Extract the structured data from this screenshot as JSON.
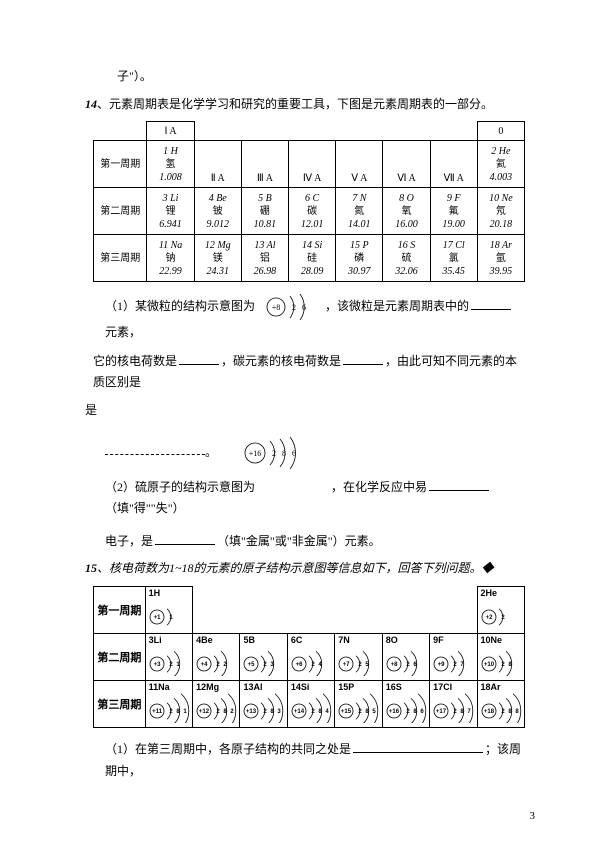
{
  "fragment_top": "子\"）。",
  "q14_num": "14",
  "q14_text": "、元素周期表是化学学习和研究的重要工具，下图是元素周期表的一部分。",
  "groups": [
    "Ⅰ A",
    "Ⅱ A",
    "Ⅲ A",
    "Ⅳ A",
    "Ⅴ A",
    "Ⅵ A",
    "Ⅶ A",
    "0"
  ],
  "periods_label": [
    "第一周期",
    "第二周期",
    "第三周期"
  ],
  "p1": [
    {
      "num": "1",
      "sym": "H",
      "name": "氢",
      "mass": "1.008"
    },
    null,
    null,
    null,
    null,
    null,
    null,
    {
      "num": "2",
      "sym": "He",
      "name": "氦",
      "mass": "4.003"
    }
  ],
  "p2": [
    {
      "num": "3",
      "sym": "Li",
      "name": "锂",
      "mass": "6.941"
    },
    {
      "num": "4",
      "sym": "Be",
      "name": "铍",
      "mass": "9.012"
    },
    {
      "num": "5",
      "sym": "B",
      "name": "硼",
      "mass": "10.81"
    },
    {
      "num": "6",
      "sym": "C",
      "name": "碳",
      "mass": "12.01"
    },
    {
      "num": "7",
      "sym": "N",
      "name": "氮",
      "mass": "14.01"
    },
    {
      "num": "8",
      "sym": "O",
      "name": "氧",
      "mass": "16.00"
    },
    {
      "num": "9",
      "sym": "F",
      "name": "氟",
      "mass": "19.00"
    },
    {
      "num": "10",
      "sym": "Ne",
      "name": "氖",
      "mass": "20.18"
    }
  ],
  "p3": [
    {
      "num": "11",
      "sym": "Na",
      "name": "钠",
      "mass": "22.99"
    },
    {
      "num": "12",
      "sym": "Mg",
      "name": "镁",
      "mass": "24.31"
    },
    {
      "num": "13",
      "sym": "Al",
      "name": "铝",
      "mass": "26.98"
    },
    {
      "num": "14",
      "sym": "Si",
      "name": "硅",
      "mass": "28.09"
    },
    {
      "num": "15",
      "sym": "P",
      "name": "磷",
      "mass": "30.97"
    },
    {
      "num": "16",
      "sym": "S",
      "name": "硫",
      "mass": "32.06"
    },
    {
      "num": "17",
      "sym": "Cl",
      "name": "氯",
      "mass": "35.45"
    },
    {
      "num": "18",
      "sym": "Ar",
      "name": "氩",
      "mass": "39.95"
    }
  ],
  "q14_1a": "（1）某微粒的结构示意图为",
  "q14_1b": "，该微粒是元素周期表中的",
  "q14_1c": "元素，",
  "q14_1d": "它的核电荷数是",
  "q14_1e": "，碳元素的核电荷数是",
  "q14_1f": "，由此可知不同元素的本质区别是",
  "q14_1g": "。",
  "q14_2a": "（2）硫原子的结构示意图为",
  "q14_2b": "，在化学反应中易",
  "q14_2c": "（填\"得\"\"失\"）",
  "q14_2d": "电子，是",
  "q14_2e": "（填\"金属\"或\"非金属\"）元素。",
  "q15_num": "15",
  "q15_text": "、核电荷数为1~18的元素的原子结构示意图等信息如下，回答下列问题。◆",
  "t2": {
    "periods": [
      "第一周期",
      "第二周期",
      "第三周期"
    ],
    "r1": [
      {
        "lbl": "1H",
        "n": "+1",
        "sh": [
          1
        ]
      },
      null,
      null,
      null,
      null,
      null,
      null,
      {
        "lbl": "2He",
        "n": "+2",
        "sh": [
          2
        ]
      }
    ],
    "r2": [
      {
        "lbl": "3Li",
        "n": "+3",
        "sh": [
          2,
          1
        ]
      },
      {
        "lbl": "4Be",
        "n": "+4",
        "sh": [
          2,
          2
        ]
      },
      {
        "lbl": "5B",
        "n": "+5",
        "sh": [
          2,
          3
        ]
      },
      {
        "lbl": "6C",
        "n": "+6",
        "sh": [
          2,
          4
        ]
      },
      {
        "lbl": "7N",
        "n": "+7",
        "sh": [
          2,
          5
        ]
      },
      {
        "lbl": "8O",
        "n": "+8",
        "sh": [
          2,
          6
        ]
      },
      {
        "lbl": "9F",
        "n": "+9",
        "sh": [
          2,
          7
        ]
      },
      {
        "lbl": "10Ne",
        "n": "+10",
        "sh": [
          2,
          8
        ]
      }
    ],
    "r3": [
      {
        "lbl": "11Na",
        "n": "+11",
        "sh": [
          2,
          8,
          1
        ]
      },
      {
        "lbl": "12Mg",
        "n": "+12",
        "sh": [
          2,
          8,
          2
        ]
      },
      {
        "lbl": "13Al",
        "n": "+13",
        "sh": [
          2,
          8,
          3
        ]
      },
      {
        "lbl": "14Si",
        "n": "+14",
        "sh": [
          2,
          8,
          4
        ]
      },
      {
        "lbl": "15P",
        "n": "+15",
        "sh": [
          2,
          8,
          5
        ]
      },
      {
        "lbl": "16S",
        "n": "+16",
        "sh": [
          2,
          8,
          6
        ]
      },
      {
        "lbl": "17Cl",
        "n": "+17",
        "sh": [
          2,
          8,
          7
        ]
      },
      {
        "lbl": "18Ar",
        "n": "+18",
        "sh": [
          2,
          8,
          8
        ]
      }
    ]
  },
  "q15_1a": "（1）在第三周期中，各原子结构的共同之处是",
  "q15_1b": "；该周期中，",
  "page_num": "3",
  "atomO": {
    "nucleus": "+8",
    "shells": [
      "2",
      "6"
    ]
  },
  "atomS": {
    "nucleus": "+16",
    "shells": [
      "2",
      "8",
      "6"
    ]
  }
}
